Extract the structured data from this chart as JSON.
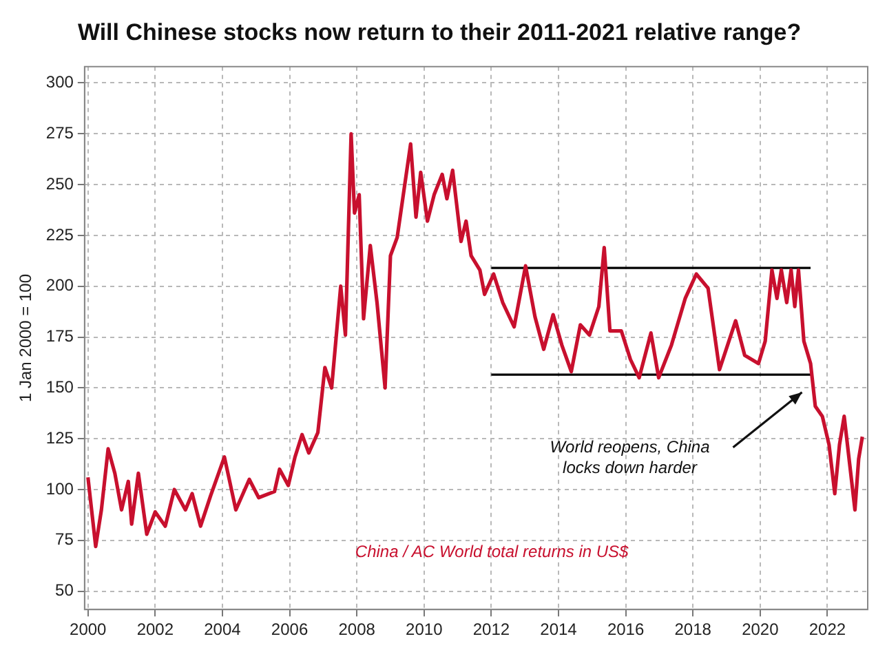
{
  "chart_data": {
    "type": "line",
    "title": "Will Chinese stocks now return to their 2011-2021 relative range?",
    "ylabel": "1 Jan 2000 = 100",
    "xlim": [
      1999.9,
      2023.2
    ],
    "xticks": [
      2000,
      2002,
      2004,
      2006,
      2008,
      2010,
      2012,
      2014,
      2016,
      2018,
      2020,
      2022
    ],
    "ylim": [
      41,
      308
    ],
    "yticks": [
      50,
      75,
      100,
      125,
      150,
      175,
      200,
      225,
      250,
      275,
      300
    ],
    "grid": true,
    "legend": false,
    "marker": "none",
    "line_style": "solid",
    "annotations": [
      "World reopens, China locks down harder"
    ],
    "series": [
      {
        "name": "China / AC World total returns in US$",
        "color": "#c8102e",
        "x": [
          2000.0,
          2000.23,
          2000.4,
          2000.6,
          2000.8,
          2001.0,
          2001.2,
          2001.3,
          2001.5,
          2001.75,
          2002.0,
          2002.3,
          2002.57,
          2002.9,
          2003.1,
          2003.35,
          2003.65,
          2004.06,
          2004.4,
          2004.8,
          2005.08,
          2005.55,
          2005.7,
          2005.96,
          2006.16,
          2006.37,
          2006.57,
          2006.84,
          2007.05,
          2007.25,
          2007.52,
          2007.66,
          2007.83,
          2007.93,
          2008.07,
          2008.2,
          2008.4,
          2008.6,
          2008.84,
          2009.0,
          2009.2,
          2009.6,
          2009.76,
          2009.9,
          2010.1,
          2010.3,
          2010.54,
          2010.68,
          2010.85,
          2011.1,
          2011.25,
          2011.4,
          2011.66,
          2011.8,
          2012.07,
          2012.34,
          2012.68,
          2013.02,
          2013.3,
          2013.56,
          2013.84,
          2014.1,
          2014.38,
          2014.65,
          2014.92,
          2015.2,
          2015.36,
          2015.53,
          2015.87,
          2016.14,
          2016.4,
          2016.75,
          2016.98,
          2017.36,
          2017.77,
          2018.1,
          2018.45,
          2018.79,
          2019.27,
          2019.54,
          2019.95,
          2020.15,
          2020.35,
          2020.5,
          2020.63,
          2020.79,
          2020.92,
          2021.03,
          2021.14,
          2021.3,
          2021.5,
          2021.64,
          2021.85,
          2022.05,
          2022.22,
          2022.36,
          2022.5,
          2022.66,
          2022.82,
          2022.93,
          2023.04
        ],
        "values": [
          106,
          72,
          90,
          120,
          108,
          90,
          104,
          83,
          108,
          78,
          89,
          82,
          100,
          90,
          98,
          82,
          97,
          116,
          90,
          105,
          96,
          99,
          110,
          102,
          116,
          127,
          118,
          128,
          160,
          150,
          200,
          176,
          275,
          236,
          245,
          184,
          220,
          192,
          150,
          215,
          224,
          270,
          234,
          256,
          232,
          245,
          255,
          243,
          257,
          222,
          232,
          215,
          208,
          196,
          206,
          192,
          180,
          210,
          185,
          169,
          186,
          171,
          158,
          181,
          176,
          190,
          219,
          178,
          178,
          164,
          155,
          177,
          155,
          171,
          194,
          206,
          199,
          159,
          183,
          166,
          162,
          173,
          208,
          194,
          208,
          192,
          208,
          190,
          208,
          173,
          162,
          141,
          136,
          122,
          98,
          122,
          136,
          113,
          90,
          115,
          126
        ]
      },
      {
        "type": "line",
        "color": "#000000",
        "x": [
          2012.0,
          2021.5
        ],
        "values": [
          209,
          209
        ]
      },
      {
        "type": "line",
        "color": "#000000",
        "x": [
          2012.0,
          2021.55
        ],
        "values": [
          156.5,
          156.5
        ]
      }
    ]
  }
}
